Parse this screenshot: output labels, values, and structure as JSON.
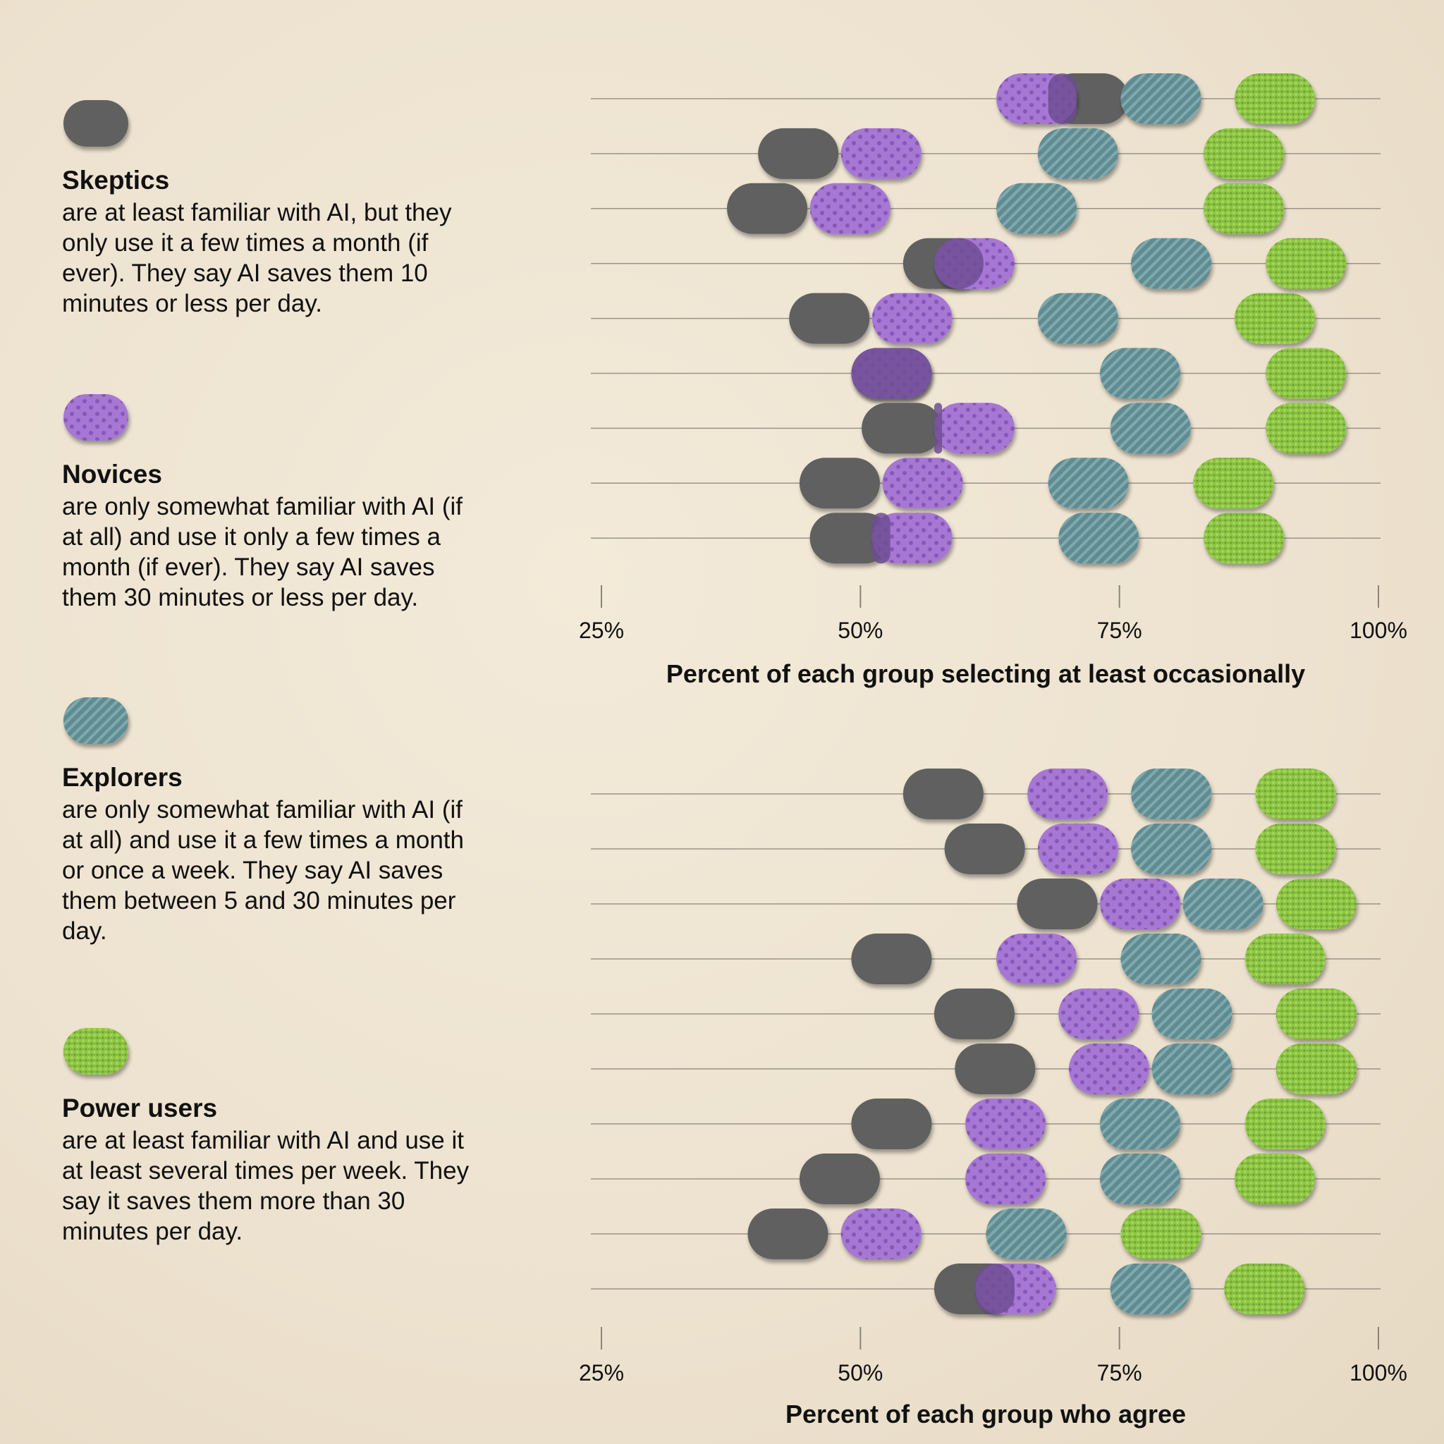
{
  "legend": [
    {
      "name": "Skeptics",
      "pattern": "solid",
      "description": "are at least familiar with AI, but they only use it a few times a month (if ever). They say AI saves them 10 minutes or less per day."
    },
    {
      "name": "Novices",
      "pattern": "dots",
      "description": "are only somewhat familiar with AI (if at all) and use it only a few times a month (if ever). They say AI saves them 30 minutes or less per day."
    },
    {
      "name": "Explorers",
      "pattern": "stripes",
      "description": "are only somewhat familiar with AI (if at all) and use it a few times a month or once a week. They say AI saves them between 5 and 30 minutes per day."
    },
    {
      "name": "Power users",
      "pattern": "knit",
      "description": "are at least familiar with AI and use it at least several times per week. They say it saves them more than 30 minutes per day."
    }
  ],
  "colors": {
    "Skeptics": "#606060",
    "Novices": "#a678d4",
    "Explorers": "#5f8c92",
    "Power users": "#8ec645",
    "overlap": "#6e4d93"
  },
  "chart_data": [
    {
      "type": "dot",
      "xlabel": "Percent of each group selecting at least occasionally",
      "ticks": [
        "25%",
        "50%",
        "75%",
        "100%"
      ],
      "xlim": [
        25,
        100
      ],
      "series": [
        {
          "name": "Skeptics",
          "values": [
            72,
            44,
            41,
            58,
            47,
            53,
            54,
            48,
            49
          ]
        },
        {
          "name": "Novices",
          "values": [
            67,
            52,
            49,
            61,
            55,
            53,
            61,
            56,
            55
          ]
        },
        {
          "name": "Explorers",
          "values": [
            79,
            71,
            67,
            80,
            71,
            77,
            78,
            72,
            73
          ]
        },
        {
          "name": "Power users",
          "values": [
            90,
            87,
            87,
            93,
            90,
            93,
            93,
            86,
            87
          ]
        }
      ]
    },
    {
      "type": "dot",
      "xlabel": "Percent of each group who agree",
      "ticks": [
        "25%",
        "50%",
        "75%",
        "100%"
      ],
      "xlim": [
        25,
        100
      ],
      "series": [
        {
          "name": "Skeptics",
          "values": [
            58,
            62,
            69,
            53,
            61,
            63,
            53,
            48,
            43,
            61
          ]
        },
        {
          "name": "Novices",
          "values": [
            70,
            71,
            77,
            67,
            73,
            74,
            64,
            64,
            52,
            65
          ]
        },
        {
          "name": "Explorers",
          "values": [
            80,
            80,
            85,
            79,
            82,
            82,
            77,
            77,
            66,
            78
          ]
        },
        {
          "name": "Power users",
          "values": [
            92,
            92,
            94,
            91,
            94,
            94,
            91,
            90,
            79,
            89
          ]
        }
      ]
    }
  ]
}
